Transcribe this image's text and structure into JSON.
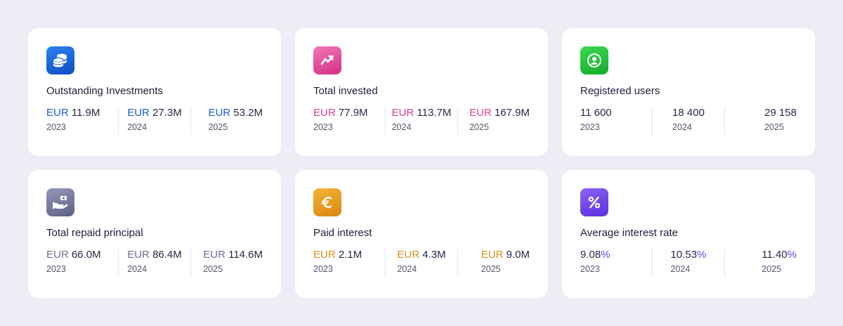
{
  "colors": {
    "blue": "#1660d6",
    "pink": "#de3e8f",
    "green": "#1fc23c",
    "slate": "#6e6f95",
    "amber": "#d6901b",
    "violet": "#6a40e8"
  },
  "cards": [
    {
      "icon": "coins-stack-icon",
      "title": "Outstanding Investments",
      "stats": [
        {
          "currency": "EUR",
          "amount": "11.9M",
          "year": "2023"
        },
        {
          "currency": "EUR",
          "amount": "27.3M",
          "year": "2024"
        },
        {
          "currency": "EUR",
          "amount": "53.2M",
          "year": "2025"
        }
      ]
    },
    {
      "icon": "trend-up-icon",
      "title": "Total invested",
      "stats": [
        {
          "currency": "EUR",
          "amount": "77.9M",
          "year": "2023"
        },
        {
          "currency": "EUR",
          "amount": "113.7M",
          "year": "2024"
        },
        {
          "currency": "EUR",
          "amount": "167.9M",
          "year": "2025"
        }
      ]
    },
    {
      "icon": "user-circle-icon",
      "title": "Registered users",
      "stats": [
        {
          "amount": "11 600",
          "year": "2023"
        },
        {
          "amount": "18 400",
          "year": "2024"
        },
        {
          "amount": "29 158",
          "year": "2025"
        }
      ]
    },
    {
      "icon": "hand-money-icon",
      "title": "Total repaid principal",
      "stats": [
        {
          "currency": "EUR",
          "amount": "66.0M",
          "year": "2023"
        },
        {
          "currency": "EUR",
          "amount": "86.4M",
          "year": "2024"
        },
        {
          "currency": "EUR",
          "amount": "114.6M",
          "year": "2025"
        }
      ]
    },
    {
      "icon": "euro-icon",
      "title": "Paid interest",
      "stats": [
        {
          "currency": "EUR",
          "amount": "2.1M",
          "year": "2023"
        },
        {
          "currency": "EUR",
          "amount": "4.3M",
          "year": "2024"
        },
        {
          "currency": "EUR",
          "amount": "9.0M",
          "year": "2025"
        }
      ]
    },
    {
      "icon": "percent-icon",
      "title": "Average interest rate",
      "stats": [
        {
          "amount": "9.08",
          "suffix": "%",
          "year": "2023"
        },
        {
          "amount": "10.53",
          "suffix": "%",
          "year": "2024"
        },
        {
          "amount": "11.40",
          "suffix": "%",
          "year": "2025"
        }
      ]
    }
  ]
}
